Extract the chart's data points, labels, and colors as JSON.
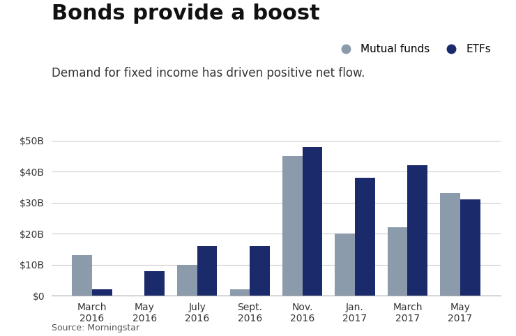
{
  "title": "Bonds provide a boost",
  "subtitle": "Demand for fixed income has driven positive net flow.",
  "source": "Source: Morningstar",
  "categories": [
    "March\n2016",
    "May\n2016",
    "July\n2016",
    "Sept.\n2016",
    "Nov.\n2016",
    "Jan.\n2017",
    "March\n2017",
    "May\n2017"
  ],
  "mutual_funds": [
    13,
    0,
    10,
    2,
    45,
    20,
    22,
    33
  ],
  "etfs": [
    2,
    8,
    16,
    16,
    48,
    38,
    42,
    31
  ],
  "mutual_funds_color": "#8C9BAB",
  "etfs_color": "#1B2A6B",
  "ylim": [
    0,
    52
  ],
  "yticks": [
    0,
    10,
    20,
    30,
    40,
    50
  ],
  "ytick_labels": [
    "$0",
    "$10B",
    "$20B",
    "$30B",
    "$40B",
    "$50B"
  ],
  "bar_width": 0.38,
  "background_color": "#ffffff",
  "title_fontsize": 22,
  "subtitle_fontsize": 12,
  "tick_fontsize": 10,
  "legend_fontsize": 11,
  "figsize": [
    7.4,
    4.82
  ],
  "dpi": 100
}
